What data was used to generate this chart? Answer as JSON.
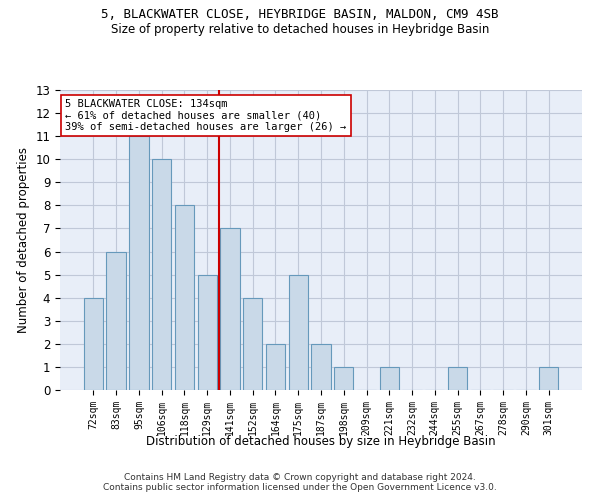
{
  "title1": "5, BLACKWATER CLOSE, HEYBRIDGE BASIN, MALDON, CM9 4SB",
  "title2": "Size of property relative to detached houses in Heybridge Basin",
  "xlabel": "Distribution of detached houses by size in Heybridge Basin",
  "ylabel": "Number of detached properties",
  "categories": [
    "72sqm",
    "83sqm",
    "95sqm",
    "106sqm",
    "118sqm",
    "129sqm",
    "141sqm",
    "152sqm",
    "164sqm",
    "175sqm",
    "187sqm",
    "198sqm",
    "209sqm",
    "221sqm",
    "232sqm",
    "244sqm",
    "255sqm",
    "267sqm",
    "278sqm",
    "290sqm",
    "301sqm"
  ],
  "values": [
    4,
    6,
    11,
    10,
    8,
    5,
    7,
    4,
    2,
    5,
    2,
    1,
    0,
    1,
    0,
    0,
    1,
    0,
    0,
    0,
    1
  ],
  "bar_color": "#c9d9e8",
  "bar_edge_color": "#6699bb",
  "reference_line_x": 5.5,
  "reference_label": "5 BLACKWATER CLOSE: 134sqm",
  "annotation_line1": "← 61% of detached houses are smaller (40)",
  "annotation_line2": "39% of semi-detached houses are larger (26) →",
  "ylim": [
    0,
    13
  ],
  "yticks": [
    0,
    1,
    2,
    3,
    4,
    5,
    6,
    7,
    8,
    9,
    10,
    11,
    12,
    13
  ],
  "footer1": "Contains HM Land Registry data © Crown copyright and database right 2024.",
  "footer2": "Contains public sector information licensed under the Open Government Licence v3.0.",
  "annotation_box_color": "#ffffff",
  "annotation_box_edge": "#cc0000",
  "ref_line_color": "#cc0000",
  "grid_color": "#c0c8d8",
  "bg_color": "#e8eef8"
}
